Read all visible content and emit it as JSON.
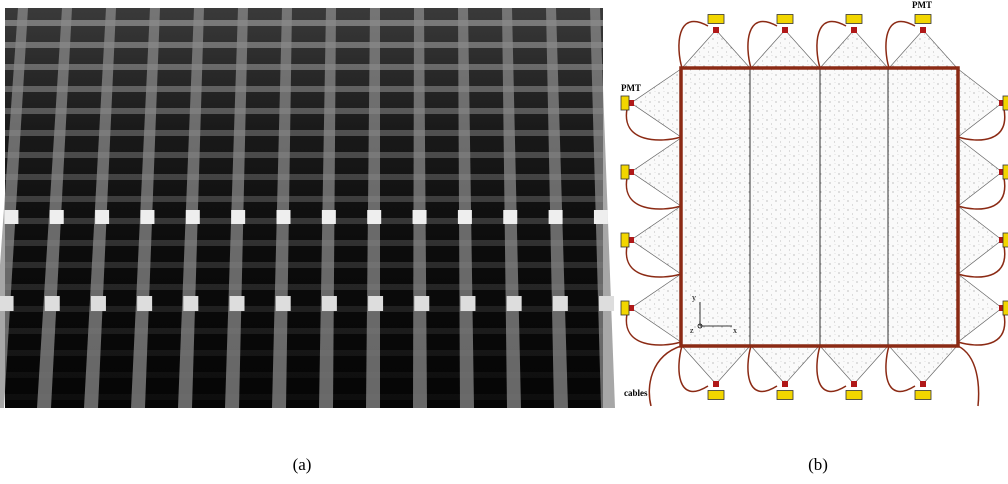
{
  "panels": [
    {
      "label": "(a)"
    },
    {
      "label": "(b)",
      "annotations": {
        "pmt_top": "PMT",
        "pmt_left": "PMT",
        "cables": "cables",
        "axis_y": "y",
        "axis_z": "z",
        "axis_x": "x"
      }
    }
  ]
}
